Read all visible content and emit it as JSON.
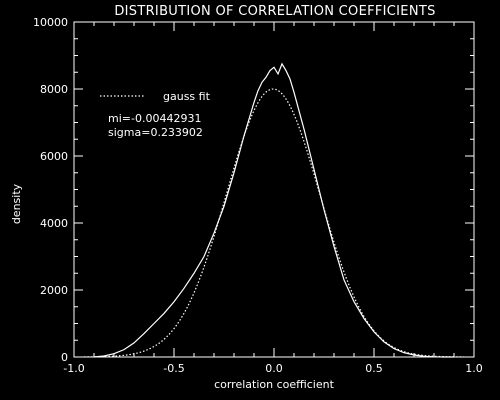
{
  "chart_data": {
    "type": "line",
    "title": "DISTRIBUTION OF CORRELATION COEFFICIENTS",
    "xlabel": "correlation coefficient",
    "ylabel": "density",
    "xlim": [
      -1.0,
      1.0
    ],
    "ylim": [
      0,
      10000
    ],
    "x_ticks": [
      "-1.0",
      "-0.5",
      "0.0",
      "0.5",
      "1.0"
    ],
    "y_ticks": [
      "0",
      "2000",
      "4000",
      "6000",
      "8000",
      "10000"
    ],
    "grid": false,
    "legend_position": "top-left",
    "colors": {
      "background": "#000000",
      "foreground": "#ffffff"
    },
    "series": [
      {
        "style": "solid",
        "x": [
          -0.9,
          -0.85,
          -0.8,
          -0.75,
          -0.7,
          -0.65,
          -0.6,
          -0.55,
          -0.5,
          -0.45,
          -0.4,
          -0.35,
          -0.3,
          -0.25,
          -0.2,
          -0.15,
          -0.1,
          -0.08,
          -0.06,
          -0.04,
          -0.02,
          0.0,
          0.02,
          0.04,
          0.06,
          0.08,
          0.1,
          0.15,
          0.2,
          0.25,
          0.3,
          0.35,
          0.4,
          0.45,
          0.5,
          0.55,
          0.6,
          0.65,
          0.7,
          0.75,
          0.8,
          0.85,
          0.9
        ],
        "values": [
          0,
          30,
          100,
          220,
          420,
          700,
          1000,
          1300,
          1650,
          2050,
          2500,
          3000,
          3700,
          4500,
          5500,
          6600,
          7600,
          7950,
          8200,
          8350,
          8550,
          8650,
          8450,
          8750,
          8550,
          8300,
          7900,
          6800,
          5600,
          4400,
          3300,
          2300,
          1650,
          1150,
          750,
          450,
          250,
          130,
          60,
          20,
          5,
          0,
          0
        ]
      },
      {
        "name": "gauss fit",
        "style": "dotted",
        "mu": -0.00442931,
        "sigma": 0.233902,
        "peak": 8000
      }
    ],
    "annotations": [
      "mi=-0.00442931",
      "sigma=0.233902"
    ]
  }
}
